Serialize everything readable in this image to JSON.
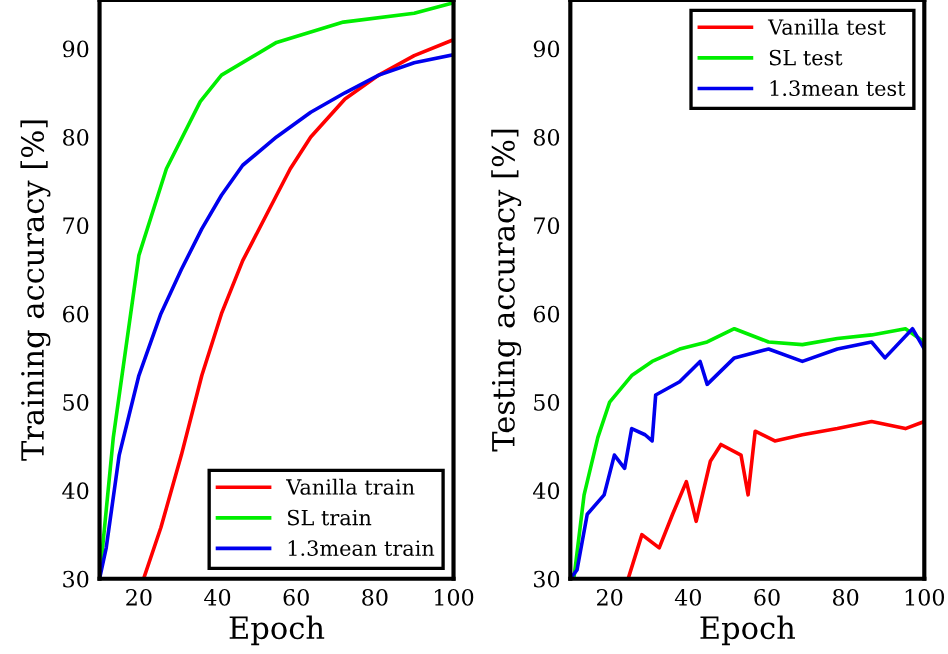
{
  "chart_data": [
    {
      "type": "line",
      "xlabel": "Epoch",
      "ylabel": "Training accuracy [%]",
      "xlim": [
        10,
        100
      ],
      "ylim": [
        30,
        95.5
      ],
      "xticks": [
        20,
        40,
        60,
        80,
        100
      ],
      "yticks": [
        30,
        40,
        50,
        60,
        70,
        80,
        90
      ],
      "legend": "bottom right",
      "grid": false,
      "series": [
        {
          "name": "Vanilla train",
          "color": "#ff0000",
          "x": [
            21.2,
            25.6,
            30.8,
            36,
            41,
            46.4,
            55,
            58.5,
            63.7,
            72.4,
            81,
            90,
            100
          ],
          "values": [
            30,
            35.8,
            44,
            53,
            60,
            66,
            73.4,
            76.4,
            80,
            84.3,
            87,
            89.2,
            91
          ]
        },
        {
          "name": "SL train",
          "color": "#00ee00",
          "x": [
            10,
            13.5,
            20,
            27,
            35.6,
            41,
            55,
            72,
            90,
            100
          ],
          "values": [
            30,
            46,
            66.6,
            76.4,
            84,
            87,
            90.7,
            93,
            94,
            95.2
          ]
        },
        {
          "name": "1.3mean train",
          "color": "#0000ee",
          "x": [
            10,
            11.7,
            15,
            20,
            25.6,
            30.8,
            36,
            41,
            46.4,
            55,
            63.7,
            72.4,
            81,
            90,
            100
          ],
          "values": [
            30,
            33.5,
            44,
            53,
            60,
            65,
            69.6,
            73.4,
            76.8,
            80,
            82.8,
            85,
            87,
            88.4,
            89.3
          ]
        }
      ]
    },
    {
      "type": "line",
      "xlabel": "Epoch",
      "ylabel": "Testing accuracy [%]",
      "xlim": [
        10,
        100
      ],
      "ylim": [
        30,
        95.5
      ],
      "xticks": [
        20,
        40,
        60,
        80,
        100
      ],
      "yticks": [
        30,
        40,
        50,
        60,
        70,
        80,
        90
      ],
      "legend": "top right",
      "grid": false,
      "series": [
        {
          "name": "Vanilla test",
          "color": "#ff0000",
          "x": [
            24.7,
            28.2,
            32.6,
            36,
            39.5,
            42,
            45.6,
            48.3,
            53.4,
            55.2,
            57,
            62,
            69,
            77.9,
            86.6,
            95.2,
            100
          ],
          "values": [
            30,
            35,
            33.5,
            37.3,
            41,
            36.5,
            43.3,
            45.2,
            44,
            39.5,
            46.7,
            45.6,
            46.3,
            47,
            47.8,
            47,
            47.8
          ]
        },
        {
          "name": "SL test",
          "color": "#00ee00",
          "x": [
            10.9,
            13.5,
            17,
            20,
            25.6,
            30.8,
            37.8,
            44.8,
            51.7,
            60.4,
            69,
            77.9,
            86.6,
            95.2,
            100
          ],
          "values": [
            30,
            39.5,
            46,
            50,
            53,
            54.6,
            56,
            56.8,
            58.3,
            56.8,
            56.5,
            57.2,
            57.6,
            58.3,
            56.8
          ]
        },
        {
          "name": "1.3mean test",
          "color": "#0000ee",
          "x": [
            10,
            11.7,
            14.3,
            18.6,
            21.2,
            23.8,
            25.6,
            29,
            30.8,
            31.7,
            37.8,
            43,
            44.8,
            51.7,
            60.4,
            69,
            77.9,
            86.6,
            90,
            97,
            100
          ],
          "values": [
            30,
            31,
            37.3,
            39.5,
            44,
            42.5,
            47,
            46.3,
            45.6,
            50.8,
            52.3,
            54.6,
            52,
            55,
            56,
            54.6,
            56,
            56.8,
            55,
            58.3,
            56
          ]
        }
      ]
    }
  ]
}
